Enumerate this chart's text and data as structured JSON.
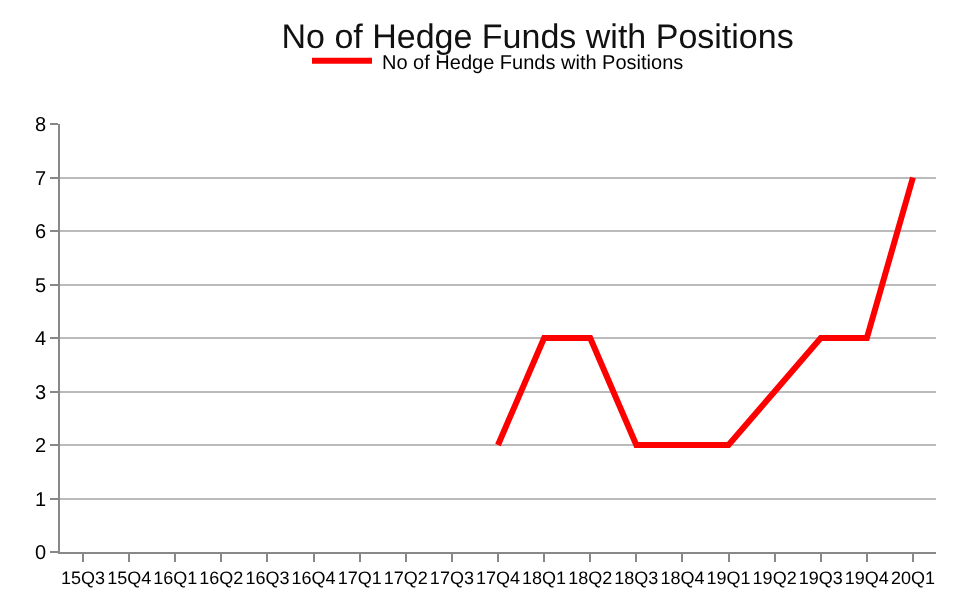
{
  "chart_data": {
    "type": "line",
    "title": "No of Hedge Funds with Positions",
    "categories": [
      "15Q3",
      "15Q4",
      "16Q1",
      "16Q2",
      "16Q3",
      "16Q4",
      "17Q1",
      "17Q2",
      "17Q3",
      "17Q4",
      "18Q1",
      "18Q2",
      "18Q3",
      "18Q4",
      "19Q1",
      "19Q2",
      "19Q3",
      "19Q4",
      "20Q1"
    ],
    "series": [
      {
        "name": "No of Hedge Funds with Positions",
        "color": "#ff0000",
        "values": [
          null,
          null,
          null,
          null,
          null,
          null,
          null,
          null,
          null,
          2,
          4,
          4,
          2,
          2,
          2,
          3,
          4,
          4,
          7
        ]
      }
    ],
    "ylim": [
      0,
      8
    ],
    "yticks": [
      0,
      1,
      2,
      3,
      4,
      5,
      6,
      7,
      8
    ],
    "grid": "y",
    "legend": "top",
    "marker": "none",
    "line_style": "solid"
  }
}
